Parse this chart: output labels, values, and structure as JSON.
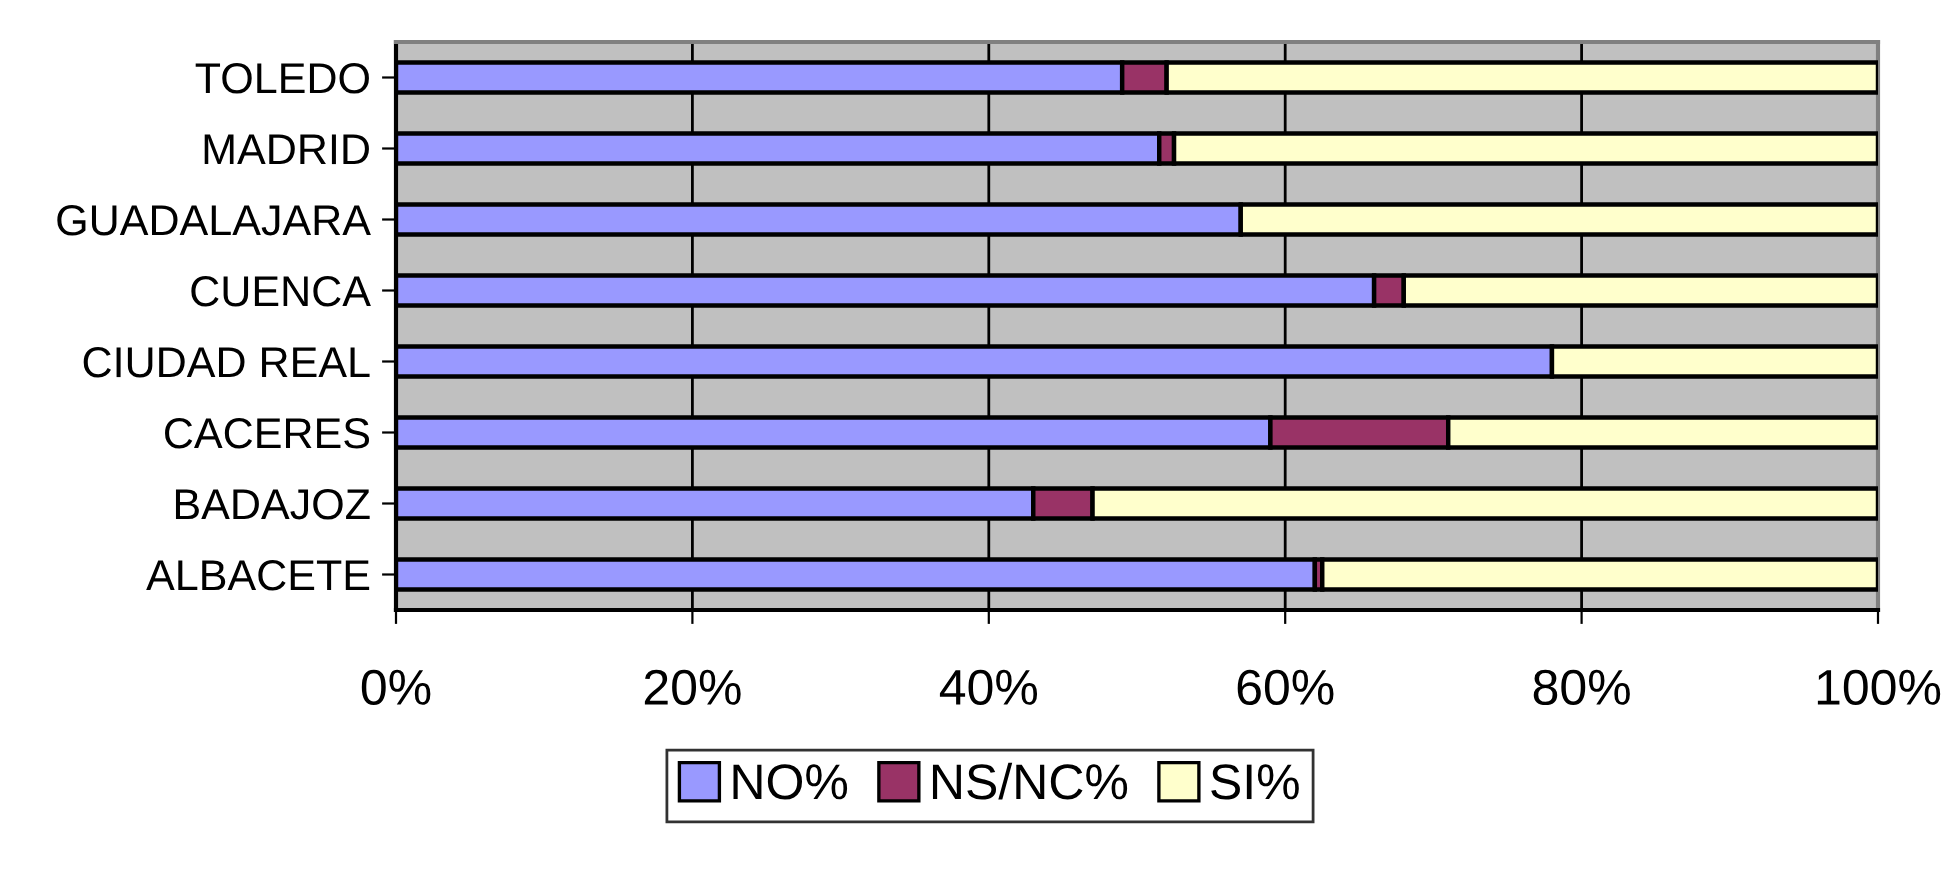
{
  "chart_data": {
    "type": "bar",
    "orientation": "horizontal",
    "stacked": true,
    "categories": [
      "TOLEDO",
      "MADRID",
      "GUADALAJARA",
      "CUENCA",
      "CIUDAD REAL",
      "CACERES",
      "BADAJOZ",
      "ALBACETE"
    ],
    "series": [
      {
        "name": "NO%",
        "color": "#9999ff",
        "values": [
          49,
          51.5,
          57,
          66,
          78,
          59,
          43,
          62
        ]
      },
      {
        "name": "NS/NC%",
        "color": "#993366",
        "values": [
          3,
          1,
          null,
          2,
          null,
          12,
          4,
          0.5
        ]
      },
      {
        "name": "SI%",
        "color": "#ffffcc",
        "values": [
          48,
          47.5,
          43,
          32,
          22,
          29,
          53,
          37.5
        ]
      }
    ],
    "xlim": [
      0,
      100
    ],
    "xticks": [
      {
        "value": 0,
        "label": "0%"
      },
      {
        "value": 20,
        "label": "20%"
      },
      {
        "value": 40,
        "label": "40%"
      },
      {
        "value": 60,
        "label": "60%"
      },
      {
        "value": 80,
        "label": "80%"
      },
      {
        "value": 100,
        "label": "100%"
      }
    ],
    "grid": "x",
    "legend": "bottom"
  }
}
